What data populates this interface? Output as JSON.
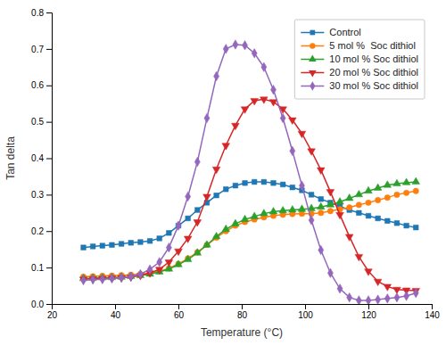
{
  "chart_data": {
    "type": "line",
    "xlabel": "Temperature (°C)",
    "ylabel": "Tan delta",
    "xlim": [
      20,
      140
    ],
    "ylim": [
      0.0,
      0.8
    ],
    "xticks": [
      20,
      40,
      60,
      80,
      100,
      120,
      140
    ],
    "yticks": [
      {
        "value": 0.0,
        "label": "0.0"
      },
      0.1,
      0.2,
      0.3,
      0.4,
      0.5,
      0.6,
      0.7,
      0.8
    ],
    "grid": false,
    "legend": "upper-right",
    "x": [
      30,
      33,
      36,
      39,
      42,
      45,
      48,
      51,
      54,
      57,
      60,
      63,
      66,
      69,
      72,
      75,
      78,
      81,
      84,
      87,
      90,
      93,
      96,
      99,
      102,
      105,
      108,
      111,
      114,
      117,
      120,
      123,
      126,
      129,
      132,
      135
    ],
    "series": [
      {
        "name": "Control",
        "marker": "square",
        "values": [
          0.155,
          0.158,
          0.16,
          0.162,
          0.165,
          0.168,
          0.17,
          0.173,
          0.18,
          0.195,
          0.215,
          0.235,
          0.258,
          0.278,
          0.298,
          0.315,
          0.325,
          0.332,
          0.335,
          0.335,
          0.332,
          0.328,
          0.32,
          0.312,
          0.3,
          0.288,
          0.278,
          0.268,
          0.258,
          0.25,
          0.242,
          0.235,
          0.228,
          0.222,
          0.215,
          0.21
        ]
      },
      {
        "name": "5 mol %  Soc dithiol",
        "marker": "circle",
        "values": [
          0.075,
          0.076,
          0.077,
          0.078,
          0.079,
          0.08,
          0.082,
          0.085,
          0.09,
          0.098,
          0.11,
          0.125,
          0.142,
          0.162,
          0.182,
          0.2,
          0.215,
          0.225,
          0.232,
          0.238,
          0.242,
          0.245,
          0.247,
          0.248,
          0.248,
          0.25,
          0.255,
          0.26,
          0.265,
          0.272,
          0.278,
          0.285,
          0.292,
          0.3,
          0.305,
          0.31
        ]
      },
      {
        "name": "10 mol % Soc dithiol",
        "marker": "triangle-up",
        "values": [
          0.07,
          0.071,
          0.072,
          0.073,
          0.074,
          0.076,
          0.078,
          0.082,
          0.088,
          0.096,
          0.108,
          0.122,
          0.14,
          0.162,
          0.185,
          0.205,
          0.22,
          0.232,
          0.24,
          0.248,
          0.253,
          0.256,
          0.258,
          0.26,
          0.262,
          0.266,
          0.272,
          0.28,
          0.29,
          0.3,
          0.31,
          0.318,
          0.326,
          0.33,
          0.333,
          0.335
        ]
      },
      {
        "name": "20 mol % Soc dithiol",
        "marker": "triangle-down",
        "values": [
          0.068,
          0.069,
          0.07,
          0.071,
          0.072,
          0.074,
          0.078,
          0.085,
          0.095,
          0.115,
          0.145,
          0.18,
          0.225,
          0.295,
          0.37,
          0.435,
          0.49,
          0.535,
          0.558,
          0.562,
          0.555,
          0.535,
          0.505,
          0.468,
          0.42,
          0.368,
          0.308,
          0.245,
          0.185,
          0.13,
          0.09,
          0.062,
          0.048,
          0.04,
          0.038,
          0.037
        ]
      },
      {
        "name": "30 mol % Soc dithiol",
        "marker": "diamond",
        "values": [
          0.065,
          0.067,
          0.068,
          0.07,
          0.072,
          0.075,
          0.082,
          0.095,
          0.115,
          0.155,
          0.215,
          0.295,
          0.39,
          0.51,
          0.625,
          0.7,
          0.712,
          0.71,
          0.688,
          0.65,
          0.588,
          0.51,
          0.42,
          0.325,
          0.23,
          0.148,
          0.085,
          0.042,
          0.018,
          0.01,
          0.01,
          0.012,
          0.015,
          0.018,
          0.022,
          0.03
        ]
      }
    ]
  }
}
